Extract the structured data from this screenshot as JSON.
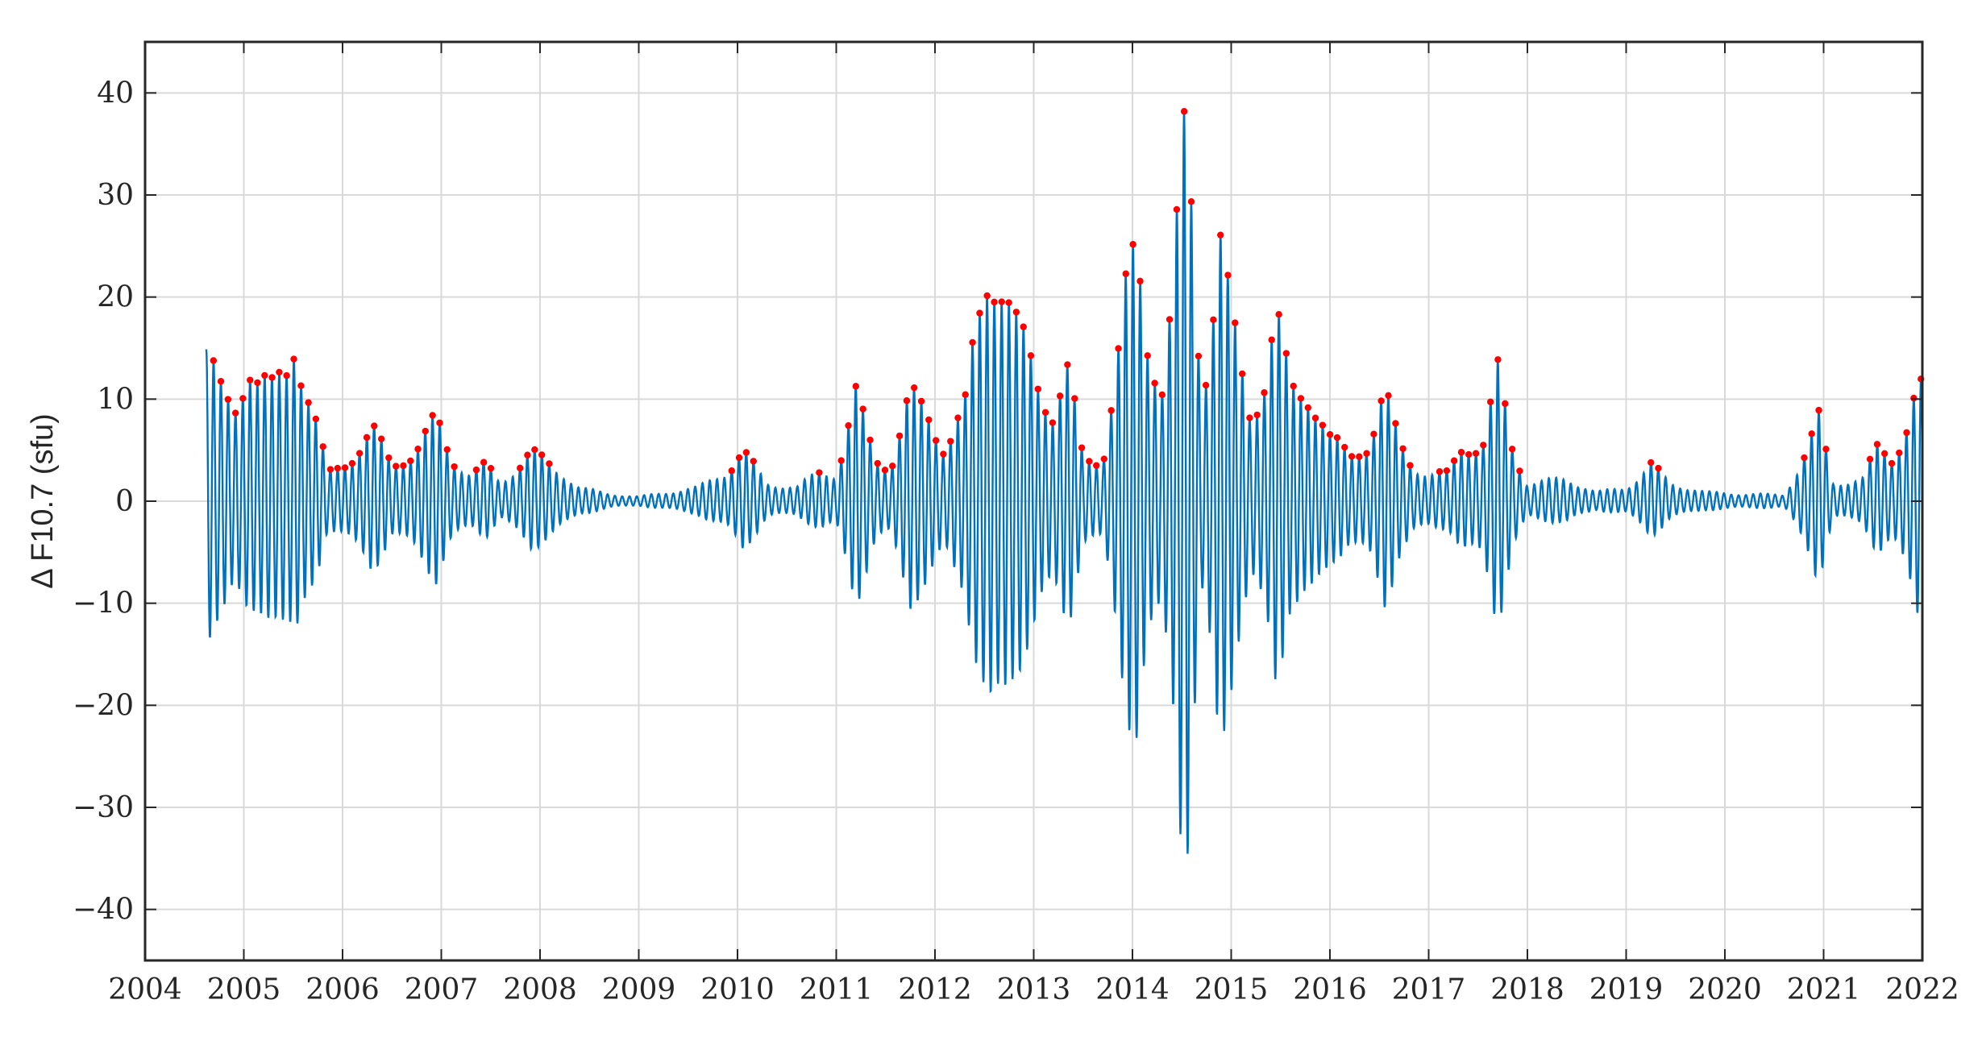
{
  "chart_data": {
    "type": "line",
    "title": "",
    "xlabel": "",
    "ylabel": "Δ F10.7 (sfu)",
    "xlim": [
      2004,
      2022
    ],
    "ylim": [
      -45,
      45
    ],
    "xticks": [
      "2004",
      "2005",
      "2006",
      "2007",
      "2008",
      "2009",
      "2010",
      "2011",
      "2012",
      "2013",
      "2014",
      "2015",
      "2016",
      "2017",
      "2018",
      "2019",
      "2020",
      "2021",
      "2022"
    ],
    "yticks": [
      "−40",
      "−30",
      "−20",
      "−10",
      "0",
      "10",
      "20",
      "30",
      "40"
    ],
    "grid": true,
    "legend": "none",
    "colors": {
      "line": "#0072BD",
      "peaks": "#FF0000",
      "grid": "#D9D9D9",
      "axes": "#262626"
    },
    "series": [
      {
        "values_note_free": true,
        "x_start": 2004.62,
        "x_end": 2022.0,
        "cycle_years": 0.0739,
        "envelope": [
          [
            2004.62,
            17.5
          ],
          [
            2004.75,
            12
          ],
          [
            2004.9,
            10
          ],
          [
            2005.05,
            17
          ],
          [
            2005.15,
            14
          ],
          [
            2005.3,
            12
          ],
          [
            2005.45,
            15
          ],
          [
            2005.52,
            20
          ],
          [
            2005.6,
            15
          ],
          [
            2005.75,
            8
          ],
          [
            2005.85,
            3
          ],
          [
            2006.0,
            4
          ],
          [
            2006.3,
            8
          ],
          [
            2006.5,
            4
          ],
          [
            2006.75,
            6
          ],
          [
            2006.95,
            9
          ],
          [
            2007.1,
            5
          ],
          [
            2007.3,
            3
          ],
          [
            2007.45,
            4
          ],
          [
            2007.6,
            2
          ],
          [
            2007.9,
            5.5
          ],
          [
            2008.1,
            4
          ],
          [
            2008.25,
            3
          ],
          [
            2008.4,
            1.5
          ],
          [
            2008.7,
            0.8
          ],
          [
            2009.0,
            0.5
          ],
          [
            2009.3,
            1
          ],
          [
            2009.6,
            1.5
          ],
          [
            2009.9,
            3.5
          ],
          [
            2010.05,
            5.5
          ],
          [
            2010.3,
            2
          ],
          [
            2010.6,
            1.5
          ],
          [
            2010.85,
            3.5
          ],
          [
            2011.0,
            3
          ],
          [
            2011.2,
            11.5
          ],
          [
            2011.4,
            5
          ],
          [
            2011.55,
            4
          ],
          [
            2011.75,
            11.5
          ],
          [
            2011.95,
            10
          ],
          [
            2012.1,
            6
          ],
          [
            2012.3,
            10
          ],
          [
            2012.45,
            22
          ],
          [
            2012.55,
            29.5
          ],
          [
            2012.65,
            26
          ],
          [
            2012.8,
            19
          ],
          [
            2013.0,
            16
          ],
          [
            2013.2,
            10
          ],
          [
            2013.35,
            14
          ],
          [
            2013.5,
            5
          ],
          [
            2013.7,
            5
          ],
          [
            2013.85,
            15
          ],
          [
            2013.95,
            24
          ],
          [
            2014.05,
            29
          ],
          [
            2014.15,
            20
          ],
          [
            2014.3,
            13
          ],
          [
            2014.42,
            23
          ],
          [
            2014.48,
            35
          ],
          [
            2014.55,
            42.5
          ],
          [
            2014.62,
            30
          ],
          [
            2014.7,
            12.5
          ],
          [
            2014.8,
            21
          ],
          [
            2014.88,
            30.5
          ],
          [
            2014.96,
            23
          ],
          [
            2015.05,
            17
          ],
          [
            2015.2,
            10
          ],
          [
            2015.35,
            15
          ],
          [
            2015.45,
            21
          ],
          [
            2015.6,
            12
          ],
          [
            2015.8,
            13
          ],
          [
            2016.0,
            7
          ],
          [
            2016.2,
            5
          ],
          [
            2016.4,
            7
          ],
          [
            2016.55,
            12
          ],
          [
            2016.7,
            6.5
          ],
          [
            2016.85,
            4
          ],
          [
            2017.0,
            3
          ],
          [
            2017.2,
            3
          ],
          [
            2017.35,
            6.5
          ],
          [
            2017.55,
            6.5
          ],
          [
            2017.7,
            14
          ],
          [
            2017.85,
            6
          ],
          [
            2018.0,
            2
          ],
          [
            2018.4,
            2.5
          ],
          [
            2018.7,
            1
          ],
          [
            2019.0,
            1.5
          ],
          [
            2019.25,
            4
          ],
          [
            2019.45,
            2
          ],
          [
            2019.8,
            1
          ],
          [
            2020.2,
            0.8
          ],
          [
            2020.6,
            0.7
          ],
          [
            2020.85,
            6
          ],
          [
            2020.95,
            9
          ],
          [
            2021.1,
            2
          ],
          [
            2021.4,
            2.5
          ],
          [
            2021.55,
            6
          ],
          [
            2021.7,
            5
          ],
          [
            2021.85,
            9
          ],
          [
            2021.95,
            12.5
          ],
          [
            2022.0,
            12
          ]
        ]
      }
    ]
  }
}
